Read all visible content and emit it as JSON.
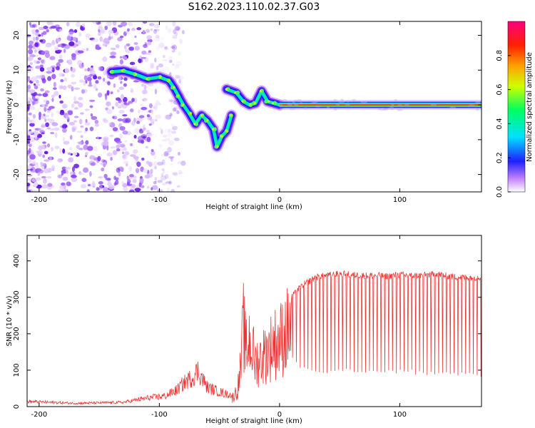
{
  "title": "S162.2023.110.02.37.G03",
  "chart_data": [
    {
      "type": "heatmap",
      "xlabel": "Height of straight line (km)",
      "ylabel": "Frequency (Hz)",
      "xlim": [
        -210,
        168
      ],
      "ylim": [
        -25,
        24
      ],
      "xticks": [
        -200,
        -100,
        0,
        100
      ],
      "yticks": [
        -20,
        -10,
        0,
        10,
        20
      ],
      "colorbar": {
        "label": "Normalized spectral amplitude",
        "range": [
          0,
          1
        ],
        "ticks": [
          0.0,
          0.2,
          0.4,
          0.6,
          0.8
        ]
      },
      "noise_region_x": [
        -210,
        -105
      ],
      "ridge": [
        {
          "x": -140,
          "y": 9.5
        },
        {
          "x": -130,
          "y": 9.8
        },
        {
          "x": -120,
          "y": 8.8
        },
        {
          "x": -110,
          "y": 7.5
        },
        {
          "x": -100,
          "y": 8.0
        },
        {
          "x": -92,
          "y": 7.0
        },
        {
          "x": -88,
          "y": 5.0
        },
        {
          "x": -84,
          "y": 2.5
        },
        {
          "x": -80,
          "y": 0.0
        },
        {
          "x": -75,
          "y": -2.5
        },
        {
          "x": -70,
          "y": -5.5
        },
        {
          "x": -65,
          "y": -3.0
        },
        {
          "x": -60,
          "y": -4.5
        },
        {
          "x": -55,
          "y": -7.0
        },
        {
          "x": -52,
          "y": -12.0
        },
        {
          "x": -48,
          "y": -9.0
        },
        {
          "x": -44,
          "y": -7.5
        },
        {
          "x": -40,
          "y": -3.0
        },
        {
          "x": -44,
          "y": 4.5
        },
        {
          "x": -36,
          "y": 3.5
        },
        {
          "x": -30,
          "y": 1.0
        },
        {
          "x": -25,
          "y": 0.0
        },
        {
          "x": -20,
          "y": 0.5
        },
        {
          "x": -15,
          "y": 4.0
        },
        {
          "x": -10,
          "y": 1.0
        },
        {
          "x": -5,
          "y": 0.5
        },
        {
          "x": 0,
          "y": 0.0
        },
        {
          "x": 168,
          "y": 0.0
        }
      ]
    },
    {
      "type": "line",
      "xlabel": "Height of straight line (km)",
      "ylabel": "SNR (10 * v/v)",
      "xlim": [
        -210,
        168
      ],
      "ylim": [
        0,
        470
      ],
      "xticks": [
        -200,
        -100,
        0,
        100
      ],
      "yticks": [
        0,
        100,
        200,
        300,
        400
      ],
      "color": "#ee3333",
      "series": [
        {
          "x": [
            -210,
            -190,
            -170,
            -150,
            -130,
            -115,
            -105,
            -95,
            -85,
            -80,
            -72,
            -68,
            -60,
            -50,
            -45,
            -40,
            -35,
            -32,
            -30,
            -28,
            -25,
            -20,
            -15,
            -10,
            -5,
            0,
            5,
            10,
            15,
            20,
            25,
            30,
            40,
            50,
            60,
            70,
            80,
            90,
            100,
            110,
            120,
            130,
            140,
            150,
            160,
            168
          ],
          "values": [
            12,
            10,
            8,
            9,
            10,
            18,
            22,
            25,
            40,
            55,
            70,
            85,
            45,
            35,
            30,
            28,
            60,
            150,
            300,
            200,
            250,
            160,
            180,
            200,
            230,
            240,
            270,
            300,
            320,
            335,
            345,
            355,
            360,
            365,
            362,
            360,
            360,
            358,
            362,
            360,
            360,
            365,
            358,
            355,
            355,
            355
          ],
          "spike_floor": [
            null,
            null,
            null,
            null,
            null,
            null,
            null,
            null,
            null,
            null,
            null,
            null,
            null,
            null,
            null,
            null,
            null,
            null,
            null,
            null,
            null,
            null,
            null,
            null,
            null,
            null,
            null,
            130,
            110,
            95,
            92,
            90,
            90,
            90,
            90,
            90,
            90,
            88,
            88,
            88,
            85,
            85,
            85,
            83,
            83,
            80
          ]
        }
      ]
    }
  ]
}
